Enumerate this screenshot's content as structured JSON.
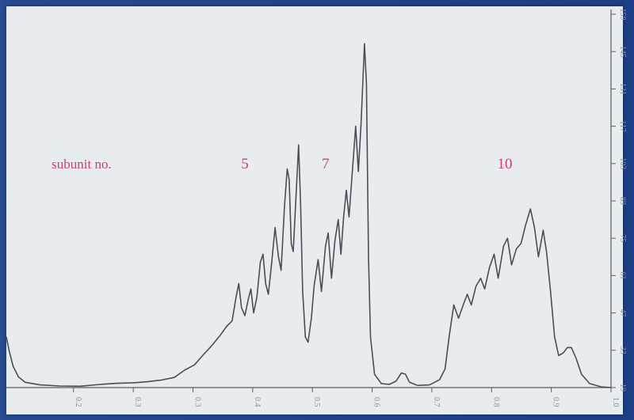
{
  "colors": {
    "background_frame": "#1c3f86",
    "paper": "#e9ecef",
    "trace": "#4a4e5a",
    "annotation": "#c8426e",
    "axis": "#5a5e66"
  },
  "chart_data": {
    "type": "line",
    "title": "",
    "xlabel": "",
    "ylabel": "",
    "xlim": [
      0.1,
      1.0
    ],
    "ylim": [
      19,
      159
    ],
    "x_ticks": [
      "0.2",
      "0.3",
      "0.3",
      "0.4",
      "0.5",
      "0.6",
      "0.7",
      "0.8",
      "0.9",
      "1.0"
    ],
    "y_ticks": [
      "19",
      "33",
      "47",
      "61",
      "75",
      "89",
      "103",
      "117",
      "131",
      "145",
      "159"
    ],
    "grid": false,
    "annotations": [
      {
        "text": "subunit no.",
        "x": 0.212,
        "y": 103
      },
      {
        "text": "5",
        "x": 0.455,
        "y": 103
      },
      {
        "text": "7",
        "x": 0.575,
        "y": 103
      },
      {
        "text": "10",
        "x": 0.842,
        "y": 103
      }
    ],
    "series": [
      {
        "points": [
          [
            0.1,
            38
          ],
          [
            0.104,
            33
          ],
          [
            0.11,
            27
          ],
          [
            0.118,
            23
          ],
          [
            0.128,
            21
          ],
          [
            0.15,
            20
          ],
          [
            0.18,
            19.6
          ],
          [
            0.21,
            19.5
          ],
          [
            0.24,
            20.2
          ],
          [
            0.265,
            20.6
          ],
          [
            0.29,
            20.8
          ],
          [
            0.31,
            21.2
          ],
          [
            0.33,
            21.8
          ],
          [
            0.35,
            22.8
          ],
          [
            0.365,
            25.5
          ],
          [
            0.38,
            27.5
          ],
          [
            0.392,
            31
          ],
          [
            0.405,
            34.5
          ],
          [
            0.418,
            38.5
          ],
          [
            0.428,
            42
          ],
          [
            0.436,
            44
          ],
          [
            0.442,
            53
          ],
          [
            0.446,
            58
          ],
          [
            0.45,
            49
          ],
          [
            0.455,
            46
          ],
          [
            0.46,
            52
          ],
          [
            0.464,
            56
          ],
          [
            0.468,
            47
          ],
          [
            0.473,
            53
          ],
          [
            0.478,
            66
          ],
          [
            0.482,
            69
          ],
          [
            0.486,
            58
          ],
          [
            0.49,
            54
          ],
          [
            0.495,
            66
          ],
          [
            0.5,
            79
          ],
          [
            0.505,
            68
          ],
          [
            0.509,
            63
          ],
          [
            0.514,
            87
          ],
          [
            0.518,
            101
          ],
          [
            0.521,
            97
          ],
          [
            0.524,
            73
          ],
          [
            0.527,
            70
          ],
          [
            0.531,
            90
          ],
          [
            0.535,
            110
          ],
          [
            0.538,
            88
          ],
          [
            0.541,
            55
          ],
          [
            0.545,
            38
          ],
          [
            0.549,
            36
          ],
          [
            0.554,
            45
          ],
          [
            0.558,
            57
          ],
          [
            0.564,
            67
          ],
          [
            0.569,
            55
          ],
          [
            0.575,
            72
          ],
          [
            0.579,
            77
          ],
          [
            0.584,
            60
          ],
          [
            0.589,
            74
          ],
          [
            0.594,
            82
          ],
          [
            0.598,
            69
          ],
          [
            0.602,
            83
          ],
          [
            0.606,
            93
          ],
          [
            0.61,
            83
          ],
          [
            0.615,
            100
          ],
          [
            0.62,
            117
          ],
          [
            0.624,
            100
          ],
          [
            0.628,
            118
          ],
          [
            0.633,
            148
          ],
          [
            0.636,
            133
          ],
          [
            0.639,
            68
          ],
          [
            0.642,
            38
          ],
          [
            0.648,
            24
          ],
          [
            0.658,
            20.5
          ],
          [
            0.67,
            20.2
          ],
          [
            0.68,
            21.4
          ],
          [
            0.688,
            24.5
          ],
          [
            0.694,
            24
          ],
          [
            0.7,
            21
          ],
          [
            0.712,
            19.8
          ],
          [
            0.73,
            20
          ],
          [
            0.745,
            22
          ],
          [
            0.753,
            26
          ],
          [
            0.759,
            38
          ],
          [
            0.766,
            50
          ],
          [
            0.773,
            45
          ],
          [
            0.78,
            50
          ],
          [
            0.786,
            54
          ],
          [
            0.792,
            50
          ],
          [
            0.799,
            57
          ],
          [
            0.806,
            60
          ],
          [
            0.812,
            56
          ],
          [
            0.819,
            64
          ],
          [
            0.826,
            69
          ],
          [
            0.832,
            60
          ],
          [
            0.84,
            72
          ],
          [
            0.846,
            75
          ],
          [
            0.852,
            65
          ],
          [
            0.859,
            71
          ],
          [
            0.866,
            73
          ],
          [
            0.873,
            80
          ],
          [
            0.88,
            86
          ],
          [
            0.886,
            79
          ],
          [
            0.892,
            68
          ],
          [
            0.899,
            78
          ],
          [
            0.904,
            70
          ],
          [
            0.91,
            55
          ],
          [
            0.916,
            38
          ],
          [
            0.922,
            31
          ],
          [
            0.929,
            32
          ],
          [
            0.935,
            34
          ],
          [
            0.941,
            34
          ],
          [
            0.948,
            30
          ],
          [
            0.956,
            24
          ],
          [
            0.968,
            20.5
          ],
          [
            0.985,
            19.3
          ],
          [
            1.0,
            19
          ]
        ]
      }
    ]
  }
}
